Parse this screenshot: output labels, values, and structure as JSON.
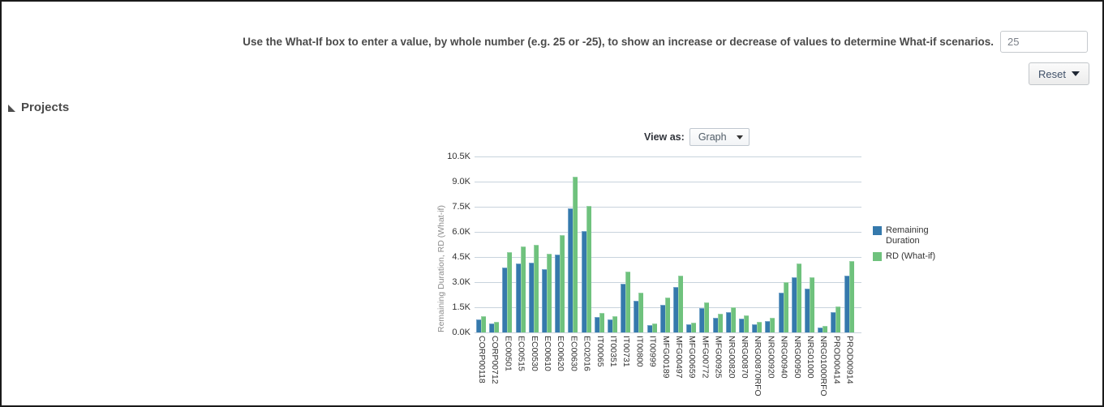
{
  "instruction": "Use the What-If box to enter a value, by whole number (e.g. 25 or -25), to show an increase or decrease of values to determine What-if scenarios.",
  "whatif_input": {
    "value": "25"
  },
  "reset_button": {
    "label": "Reset",
    "caret_icon": "caret-down"
  },
  "projects_section": {
    "title": "Projects",
    "state_icon": "disclosure-triangle"
  },
  "view_as": {
    "label": "View as:",
    "selected": "Graph"
  },
  "colors": {
    "series_blue": "#3579ac",
    "series_green": "#6fc27d",
    "gridline": "#c8d3dd",
    "axis_text": "#333333",
    "axis_title_gray": "#8c8c8c"
  },
  "chart_data": {
    "type": "bar",
    "title": "",
    "xlabel": "",
    "ylabel": "Remaining Duration, RD (What-if)",
    "ylim": [
      0,
      10500
    ],
    "ytick_step": 1500,
    "yticks": [
      "0.0K",
      "1.5K",
      "3.0K",
      "4.5K",
      "6.0K",
      "7.5K",
      "9.0K",
      "10.5K"
    ],
    "grid": true,
    "legend_position": "right",
    "categories": [
      "CORP00118",
      "CORP00712",
      "EC00501",
      "EC00515",
      "EC00530",
      "EC00610",
      "EC00620",
      "EC00630",
      "EC02016",
      "IT00065",
      "IT00351",
      "IT00731",
      "IT00800",
      "IT00999",
      "MFG00189",
      "MFG00497",
      "MFG00659",
      "MFG00772",
      "MFG00925",
      "NRG00820",
      "NRG00870",
      "NRG00870RFO",
      "NRG00920",
      "NRG00940",
      "NRG00950",
      "NRG01000",
      "NRG01000RFO",
      "PROD00414",
      "PROD00914"
    ],
    "series": [
      {
        "name": "Remaining Duration",
        "color": "#3579ac",
        "values": [
          780,
          520,
          3850,
          4100,
          4180,
          3760,
          4650,
          7420,
          6040,
          920,
          760,
          2900,
          1900,
          440,
          1650,
          2700,
          480,
          1450,
          880,
          1200,
          800,
          500,
          700,
          2380,
          3280,
          2620,
          300,
          1220,
          3400
        ]
      },
      {
        "name": "RD (What-if)",
        "color": "#6fc27d",
        "values": [
          975,
          650,
          4810,
          5130,
          5230,
          4700,
          5810,
          9280,
          7550,
          1150,
          950,
          3630,
          2380,
          550,
          2060,
          3380,
          600,
          1810,
          1100,
          1500,
          1000,
          630,
          880,
          2980,
          4100,
          3280,
          380,
          1530,
          4250
        ]
      }
    ]
  }
}
